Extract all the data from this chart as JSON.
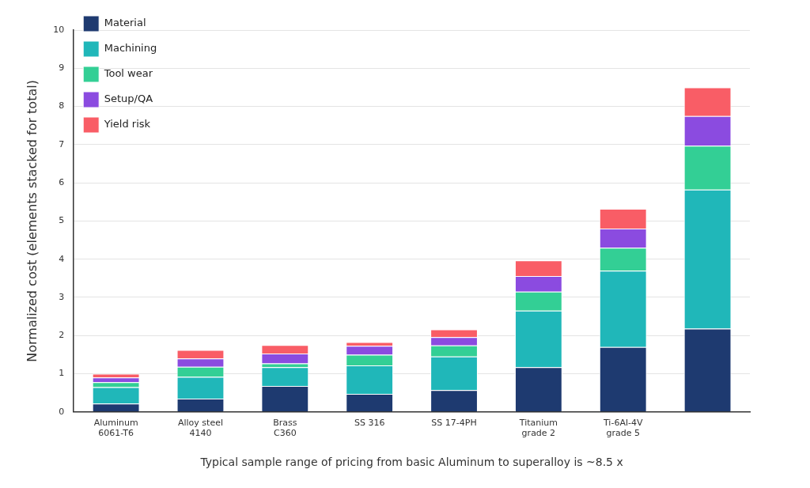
{
  "chart_data": {
    "type": "bar",
    "stacked": true,
    "ylabel": "Normalized cost (elements stacked for total)",
    "xlabel": "Typical sample range of pricing from basic Aluminum to superalloy is ~8.5 x",
    "categories": [
      "Aluminum\n6061-T6",
      "Alloy steel\n4140",
      "Brass\nC360",
      "SS 316",
      "SS 17-4PH",
      "Titanium\ngrade 2",
      "Ti-6Al-4V\ngrade 5",
      null
    ],
    "series": [
      {
        "name": "Material",
        "color": "#1e3a70",
        "values": [
          0.22,
          0.35,
          0.68,
          0.47,
          0.57,
          1.17,
          1.7,
          2.18
        ]
      },
      {
        "name": "Machining",
        "color": "#20b7b9",
        "values": [
          0.43,
          0.57,
          0.49,
          0.75,
          0.88,
          1.48,
          2.0,
          3.64
        ]
      },
      {
        "name": "Tool wear",
        "color": "#33cf95",
        "values": [
          0.13,
          0.26,
          0.1,
          0.28,
          0.29,
          0.5,
          0.6,
          1.15
        ]
      },
      {
        "name": "Setup/QA",
        "color": "#8b4be0",
        "values": [
          0.12,
          0.22,
          0.26,
          0.23,
          0.22,
          0.41,
          0.5,
          0.78
        ]
      },
      {
        "name": "Yield risk",
        "color": "#f95d66",
        "values": [
          0.1,
          0.22,
          0.22,
          0.1,
          0.2,
          0.41,
          0.52,
          0.75
        ]
      }
    ],
    "ylim": [
      0,
      10
    ],
    "yticks": [
      0,
      1,
      2,
      3,
      4,
      5,
      6,
      7,
      8,
      9,
      10
    ],
    "grid": "y",
    "legend": "top left"
  }
}
